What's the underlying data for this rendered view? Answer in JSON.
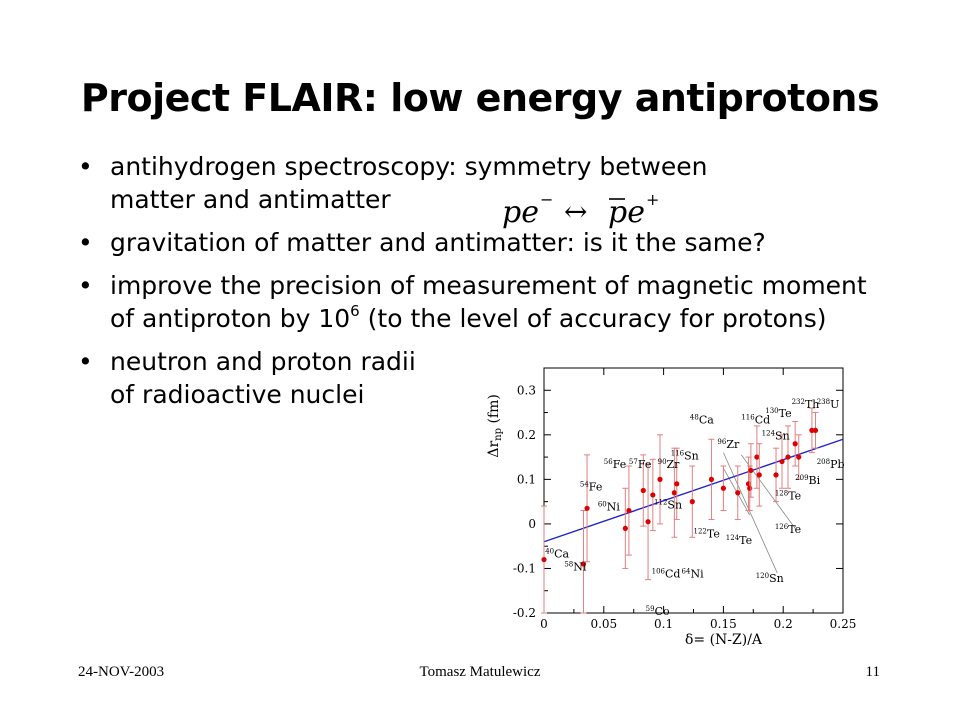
{
  "title": "Project FLAIR: low energy antiprotons",
  "bullets": {
    "b1_line1": "antihydrogen spectroscopy: symmetry between",
    "b1_line2": "matter and antimatter",
    "b2": "gravitation of matter and antimatter: is it the same?",
    "b3_pre": "improve the precision of measurement of magnetic moment of antiproton by 10",
    "b3_sup": "6",
    "b3_post": " (to the level of accuracy for protons)",
    "b4_line1": "neutron and proton radii",
    "b4_line2": "of radioactive nuclei"
  },
  "formula": {
    "left": "pe",
    "left_sup": "−",
    "arrow": "↔",
    "right": "pe",
    "right_sup": "+"
  },
  "footer": {
    "date": "24-NOV-2003",
    "author": "Tomasz Matulewicz",
    "page": "11"
  },
  "chart_data": {
    "type": "scatter",
    "xlabel": "δ= (N-Z)/A",
    "ylabel": "Δr",
    "ylabel_sub": "np",
    "ylabel_unit": " (fm)",
    "xlim": [
      0,
      0.25
    ],
    "ylim": [
      -0.2,
      0.35
    ],
    "xticks": [
      "0",
      "0.05",
      "0.1",
      "0.15",
      "0.2",
      "0.25"
    ],
    "yticks": [
      "-0.2",
      "-0.1",
      "0",
      "0.1",
      "0.2",
      "0.3"
    ],
    "grid": false,
    "marker_color": "#dd0000",
    "error_color": "#e08080",
    "fit_color": "#2222cc",
    "fit_line": [
      [
        0,
        -0.04
      ],
      [
        0.25,
        0.19
      ]
    ],
    "points": [
      {
        "x": 0.0,
        "y": -0.08,
        "err": 0.12
      },
      {
        "x": 0.033,
        "y": -0.09,
        "err": 0.12
      },
      {
        "x": 0.036,
        "y": 0.035,
        "err": 0.12
      },
      {
        "x": 0.068,
        "y": -0.01,
        "err": 0.09
      },
      {
        "x": 0.071,
        "y": 0.03,
        "err": 0.1
      },
      {
        "x": 0.083,
        "y": 0.075,
        "err": 0.08
      },
      {
        "x": 0.087,
        "y": 0.005,
        "err": 0.13
      },
      {
        "x": 0.091,
        "y": 0.065,
        "err": 0.08
      },
      {
        "x": 0.097,
        "y": 0.1,
        "err": 0.1
      },
      {
        "x": 0.109,
        "y": 0.07,
        "err": 0.1
      },
      {
        "x": 0.111,
        "y": 0.09,
        "err": 0.08
      },
      {
        "x": 0.124,
        "y": 0.05,
        "err": 0.08
      },
      {
        "x": 0.14,
        "y": 0.1,
        "err": 0.09
      },
      {
        "x": 0.15,
        "y": 0.08,
        "err": 0.05
      },
      {
        "x": 0.162,
        "y": 0.07,
        "err": 0.06
      },
      {
        "x": 0.171,
        "y": 0.09,
        "err": 0.06
      },
      {
        "x": 0.172,
        "y": 0.08,
        "err": 0.05
      },
      {
        "x": 0.173,
        "y": 0.12,
        "err": 0.06
      },
      {
        "x": 0.178,
        "y": 0.15,
        "err": 0.07
      },
      {
        "x": 0.18,
        "y": 0.11,
        "err": 0.07
      },
      {
        "x": 0.194,
        "y": 0.11,
        "err": 0.06
      },
      {
        "x": 0.199,
        "y": 0.14,
        "err": 0.06
      },
      {
        "x": 0.204,
        "y": 0.15,
        "err": 0.07
      },
      {
        "x": 0.21,
        "y": 0.18,
        "err": 0.05
      },
      {
        "x": 0.213,
        "y": 0.15,
        "err": 0.05
      },
      {
        "x": 0.224,
        "y": 0.21,
        "err": 0.05
      },
      {
        "x": 0.227,
        "y": 0.21,
        "err": 0.04
      }
    ],
    "labels": [
      {
        "mass": "40",
        "el": "Ca",
        "x": 0.001,
        "y": -0.075
      },
      {
        "mass": "58",
        "el": "Ni",
        "x": 0.017,
        "y": -0.105
      },
      {
        "mass": "54",
        "el": "Fe",
        "x": 0.03,
        "y": 0.075
      },
      {
        "mass": "60",
        "el": "Ni",
        "x": 0.045,
        "y": 0.03
      },
      {
        "mass": "56",
        "el": "Fe",
        "x": 0.05,
        "y": 0.125
      },
      {
        "mass": "57",
        "el": "Fe",
        "x": 0.071,
        "y": 0.125
      },
      {
        "mass": "90",
        "el": "Zr",
        "x": 0.095,
        "y": 0.125
      },
      {
        "mass": "112",
        "el": "Sn",
        "x": 0.092,
        "y": 0.035
      },
      {
        "mass": "106",
        "el": "Cd",
        "x": 0.09,
        "y": -0.12
      },
      {
        "mass": "64",
        "el": "Ni",
        "x": 0.115,
        "y": -0.12
      },
      {
        "mass": "59",
        "el": "Co",
        "x": 0.085,
        "y": -0.205
      },
      {
        "mass": "116",
        "el": "Sn",
        "x": 0.106,
        "y": 0.145
      },
      {
        "mass": "48",
        "el": "Ca",
        "x": 0.122,
        "y": 0.225
      },
      {
        "mass": "96",
        "el": "Zr",
        "x": 0.145,
        "y": 0.17
      },
      {
        "mass": "116",
        "el": "Cd",
        "x": 0.165,
        "y": 0.225
      },
      {
        "mass": "130",
        "el": "Te",
        "x": 0.185,
        "y": 0.24
      },
      {
        "mass": "124",
        "el": "Sn",
        "x": 0.182,
        "y": 0.19
      },
      {
        "mass": "232",
        "el": "Th",
        "x": 0.207,
        "y": 0.26
      },
      {
        "mass": "238",
        "el": "U",
        "x": 0.228,
        "y": 0.26
      },
      {
        "mass": "208",
        "el": "Pb",
        "x": 0.228,
        "y": 0.125
      },
      {
        "mass": "209",
        "el": "Bi",
        "x": 0.21,
        "y": 0.09
      },
      {
        "mass": "128",
        "el": "Te",
        "x": 0.193,
        "y": 0.055
      },
      {
        "mass": "126",
        "el": "Te",
        "x": 0.193,
        "y": -0.02
      },
      {
        "mass": "122",
        "el": "Te",
        "x": 0.125,
        "y": -0.03
      },
      {
        "mass": "124",
        "el": "Te",
        "x": 0.152,
        "y": -0.045
      },
      {
        "mass": "120",
        "el": "Sn",
        "x": 0.177,
        "y": -0.13
      }
    ],
    "leaders": [
      [
        0.165,
        0.155,
        0.21,
        -0.01
      ],
      [
        0.15,
        0.16,
        0.195,
        -0.11
      ],
      [
        0.15,
        0.125,
        0.172,
        0.02
      ]
    ]
  }
}
